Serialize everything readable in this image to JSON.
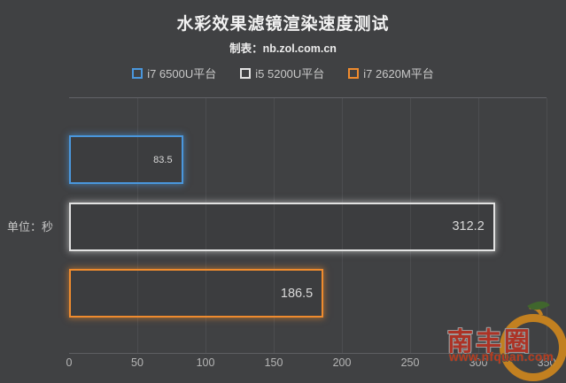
{
  "header": {
    "title": "水彩效果滤镜渲染速度测试",
    "subtitle": "制表：nb.zol.com.cn"
  },
  "chart_data": {
    "type": "bar",
    "orientation": "horizontal",
    "title": "水彩效果滤镜渲染速度测试",
    "subtitle": "制表：nb.zol.com.cn",
    "unit_label": "单位：秒",
    "categories": [
      "i7 6500U平台",
      "i5 5200U平台",
      "i7 2620M平台"
    ],
    "values": [
      83.5,
      312.2,
      186.5
    ],
    "series_colors": [
      "#4a97dd",
      "#e2e2e2",
      "#ef8b2e"
    ],
    "xlim": [
      0,
      350
    ],
    "x_ticks": [
      0,
      50,
      100,
      150,
      200,
      250,
      300,
      350
    ],
    "legend_position": "top",
    "grid": "vertical",
    "value_labels": "inside-end"
  },
  "watermark": {
    "name": "南丰圈",
    "url": "www.nfquan.com"
  },
  "colors": {
    "background": "#404143",
    "blue": "#4a97dd",
    "white": "#e2e2e2",
    "orange": "#ef8b2e",
    "gridline": "#4c4d50"
  }
}
